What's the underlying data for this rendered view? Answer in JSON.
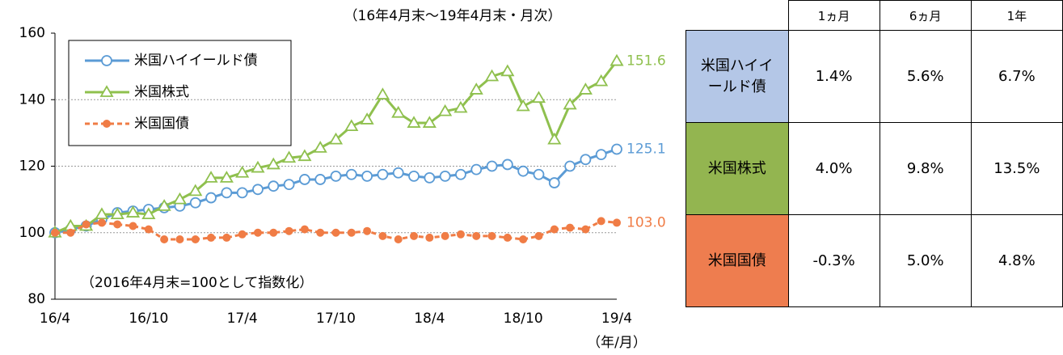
{
  "chart_data": {
    "type": "line",
    "subtitle": "（16年4月末～19年4月末・月次）",
    "annotation": "（2016年4月末=100として指数化）",
    "x_unit": "（年/月）",
    "categories": [
      "16/4",
      null,
      null,
      null,
      null,
      null,
      "16/10",
      null,
      null,
      null,
      null,
      null,
      "17/4",
      null,
      null,
      null,
      null,
      null,
      "17/10",
      null,
      null,
      null,
      null,
      null,
      "18/4",
      null,
      null,
      null,
      null,
      null,
      "18/10",
      null,
      null,
      null,
      null,
      null,
      "19/4"
    ],
    "ylim": [
      80,
      160
    ],
    "yticks": [
      80,
      100,
      120,
      140,
      160
    ],
    "grid": true,
    "legend": "upper left",
    "series": [
      {
        "name": "米国ハイイールド債",
        "color": "#5b9bd5",
        "marker": "circle",
        "linestyle": "solid",
        "end_label": "125.1",
        "values": [
          100,
          101,
          102,
          104,
          106,
          106.5,
          107,
          107.5,
          108,
          109,
          110.5,
          112,
          112,
          113,
          114,
          114.5,
          116,
          116,
          117,
          117.5,
          117,
          117.5,
          118,
          117,
          116.5,
          117,
          117.5,
          119,
          120,
          120.5,
          118.5,
          117.5,
          115,
          120,
          122,
          123.5,
          125.1
        ]
      },
      {
        "name": "米国株式",
        "color": "#8fc04e",
        "marker": "triangle",
        "linestyle": "solid",
        "end_label": "151.6",
        "values": [
          100,
          102,
          102,
          105.5,
          105.5,
          106,
          105.5,
          108,
          110,
          112.5,
          116.5,
          116.5,
          118,
          119.5,
          120.5,
          122.5,
          123,
          125.5,
          128,
          132,
          134,
          141.5,
          136,
          133,
          133,
          136.5,
          137.5,
          143,
          147,
          148.5,
          138,
          140.5,
          128,
          138.5,
          143,
          145.5,
          151.6
        ]
      },
      {
        "name": "米国国債",
        "color": "#f07c45",
        "marker": "dot",
        "linestyle": "dashed",
        "end_label": "103.0",
        "values": [
          100,
          100,
          102.5,
          103,
          102.5,
          102,
          101,
          98,
          98,
          98,
          98.5,
          98.5,
          99.5,
          100,
          100,
          100.5,
          101,
          100,
          100,
          100,
          100.5,
          99,
          98,
          99,
          98.5,
          99,
          99.5,
          99,
          99,
          98.5,
          98,
          99,
          101,
          101.5,
          101,
          103.5,
          103
        ]
      }
    ]
  },
  "table": {
    "header": [
      "1ヵ月",
      "6ヵ月",
      "1年"
    ],
    "rows": [
      {
        "name": "米国ハイイールド債",
        "color": "#b4c7e7",
        "cells": [
          "1.4%",
          "5.6%",
          "6.7%"
        ]
      },
      {
        "name": "米国株式",
        "color": "#93b550",
        "cells": [
          "4.0%",
          "9.8%",
          "13.5%"
        ]
      },
      {
        "name": "米国国債",
        "color": "#ee7d4f",
        "cells": [
          "-0.3%",
          "5.0%",
          "4.8%"
        ]
      }
    ]
  }
}
